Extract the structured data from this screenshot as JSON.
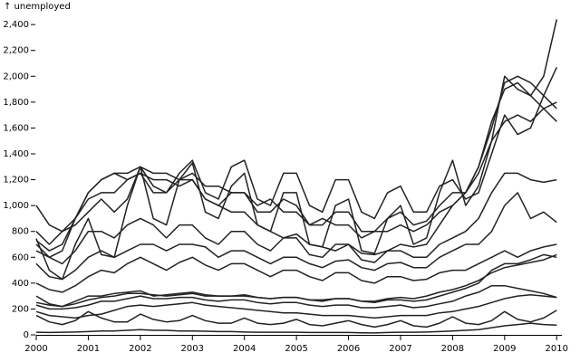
{
  "chart_data": {
    "type": "line",
    "y_label": "↑ unemployed",
    "color": "#222",
    "xlim": [
      2000,
      2010.1
    ],
    "xticks": [
      2000,
      2001,
      2002,
      2003,
      2004,
      2005,
      2006,
      2007,
      2008,
      2009,
      2010
    ],
    "ylim": [
      0,
      2450
    ],
    "yticks": [
      0,
      200,
      400,
      600,
      800,
      {
        "value": 1000,
        "label": "1,000"
      },
      {
        "value": 1200,
        "label": "1,200"
      },
      {
        "value": 1400,
        "label": "1,400"
      },
      {
        "value": 1600,
        "label": "1,600"
      },
      {
        "value": 1800,
        "label": "1,800"
      },
      {
        "value": 2000,
        "label": "2,000"
      },
      {
        "value": 2200,
        "label": "2,200"
      },
      {
        "value": 2400,
        "label": "2,400"
      }
    ],
    "x": [
      2000,
      2000.25,
      2000.5,
      2000.75,
      2001,
      2001.25,
      2001.5,
      2001.75,
      2002,
      2002.25,
      2002.5,
      2002.75,
      2003,
      2003.25,
      2003.5,
      2003.75,
      2004,
      2004.25,
      2004.5,
      2004.75,
      2005,
      2005.25,
      2005.5,
      2005.75,
      2006,
      2006.25,
      2006.5,
      2006.75,
      2007,
      2007.25,
      2007.5,
      2007.75,
      2008,
      2008.25,
      2008.5,
      2008.75,
      2009,
      2009.25,
      2009.5,
      2009.75,
      2010
    ],
    "series": [
      {
        "values": [
          745,
          500,
          430,
          700,
          900,
          620,
          600,
          1000,
          1300,
          900,
          850,
          1200,
          1330,
          950,
          900,
          1150,
          1250,
          850,
          800,
          1100,
          1100,
          700,
          680,
          1000,
          1050,
          650,
          630,
          900,
          1000,
          700,
          750,
          1100,
          1350,
          1000,
          1150,
          1500,
          2000,
          1900,
          1850,
          2000,
          2440
        ]
      },
      {
        "values": [
          730,
          650,
          700,
          900,
          1100,
          1200,
          1250,
          1200,
          1250,
          1200,
          1200,
          1150,
          1200,
          1050,
          1000,
          950,
          950,
          850,
          800,
          750,
          780,
          700,
          680,
          650,
          700,
          630,
          620,
          650,
          700,
          680,
          700,
          850,
          1000,
          1100,
          1300,
          1600,
          1950,
          2000,
          1950,
          1850,
          1750
        ]
      },
      {
        "values": [
          1000,
          850,
          800,
          900,
          1050,
          1100,
          1100,
          1200,
          1250,
          1100,
          1100,
          1200,
          1200,
          1050,
          1000,
          1100,
          1100,
          950,
          950,
          1050,
          1000,
          850,
          850,
          950,
          950,
          800,
          800,
          900,
          950,
          850,
          880,
          1000,
          1100,
          1100,
          1250,
          1500,
          1650,
          1700,
          1650,
          1750,
          1800
        ]
      },
      {
        "values": [
          650,
          600,
          650,
          900,
          1100,
          1200,
          1250,
          1250,
          1300,
          1250,
          1250,
          1200,
          1250,
          1150,
          1150,
          1100,
          1100,
          1000,
          1050,
          950,
          950,
          850,
          900,
          850,
          850,
          750,
          800,
          800,
          850,
          800,
          850,
          950,
          1000,
          1100,
          1300,
          1650,
          1900,
          1950,
          1850,
          1750,
          1650
        ]
      },
      {
        "values": [
          800,
          700,
          800,
          850,
          950,
          1050,
          950,
          1050,
          1300,
          1150,
          1100,
          1250,
          1350,
          1100,
          1050,
          1300,
          1350,
          1050,
          1000,
          1250,
          1250,
          1000,
          950,
          1200,
          1200,
          950,
          900,
          1100,
          1150,
          950,
          950,
          1150,
          1200,
          1050,
          1100,
          1400,
          1700,
          1550,
          1600,
          1850,
          2070
        ]
      },
      {
        "values": [
          700,
          600,
          550,
          650,
          800,
          800,
          750,
          850,
          900,
          850,
          750,
          850,
          850,
          750,
          700,
          800,
          800,
          700,
          650,
          750,
          750,
          620,
          600,
          700,
          700,
          580,
          560,
          650,
          650,
          600,
          600,
          700,
          750,
          800,
          900,
          1100,
          1250,
          1250,
          1200,
          1180,
          1200
        ]
      },
      {
        "values": [
          550,
          450,
          430,
          500,
          600,
          650,
          600,
          650,
          700,
          700,
          650,
          700,
          700,
          680,
          600,
          650,
          650,
          600,
          550,
          600,
          600,
          550,
          520,
          570,
          580,
          520,
          500,
          550,
          560,
          520,
          520,
          600,
          650,
          700,
          700,
          800,
          1000,
          1100,
          900,
          950,
          870
        ]
      },
      {
        "values": [
          400,
          350,
          330,
          380,
          450,
          500,
          480,
          550,
          600,
          550,
          500,
          560,
          600,
          540,
          500,
          550,
          550,
          500,
          450,
          500,
          500,
          450,
          420,
          480,
          480,
          420,
          400,
          450,
          450,
          420,
          430,
          480,
          500,
          500,
          550,
          600,
          650,
          600,
          650,
          680,
          700
        ]
      },
      {
        "values": [
          250,
          230,
          220,
          240,
          270,
          290,
          300,
          320,
          320,
          310,
          300,
          310,
          320,
          300,
          300,
          300,
          300,
          290,
          280,
          290,
          290,
          270,
          260,
          280,
          280,
          260,
          250,
          270,
          270,
          260,
          270,
          300,
          330,
          360,
          400,
          500,
          550,
          550,
          580,
          620,
          600
        ]
      },
      {
        "values": [
          300,
          240,
          220,
          260,
          300,
          300,
          320,
          330,
          340,
          300,
          310,
          320,
          330,
          310,
          300,
          300,
          310,
          290,
          280,
          290,
          290,
          270,
          270,
          280,
          280,
          260,
          260,
          280,
          290,
          280,
          300,
          330,
          350,
          380,
          420,
          480,
          520,
          540,
          560,
          580,
          620
        ]
      },
      {
        "values": [
          230,
          200,
          200,
          210,
          230,
          260,
          260,
          280,
          300,
          280,
          280,
          290,
          290,
          270,
          260,
          270,
          270,
          250,
          240,
          250,
          250,
          230,
          220,
          230,
          230,
          210,
          210,
          220,
          230,
          210,
          220,
          240,
          260,
          300,
          330,
          380,
          380,
          360,
          340,
          320,
          290
        ]
      },
      {
        "values": [
          180,
          150,
          140,
          130,
          150,
          160,
          190,
          220,
          230,
          220,
          230,
          240,
          250,
          230,
          220,
          210,
          200,
          190,
          180,
          170,
          170,
          160,
          150,
          150,
          150,
          140,
          130,
          140,
          150,
          150,
          150,
          170,
          180,
          200,
          220,
          250,
          280,
          300,
          310,
          300,
          290
        ]
      },
      {
        "values": [
          150,
          100,
          80,
          110,
          180,
          130,
          100,
          100,
          160,
          120,
          100,
          110,
          150,
          110,
          90,
          90,
          130,
          90,
          80,
          90,
          120,
          80,
          70,
          90,
          110,
          80,
          60,
          80,
          110,
          70,
          60,
          90,
          140,
          90,
          80,
          110,
          180,
          120,
          100,
          130,
          190
        ]
      },
      {
        "values": [
          20,
          18,
          20,
          22,
          25,
          30,
          30,
          35,
          40,
          35,
          35,
          30,
          30,
          28,
          25,
          25,
          22,
          20,
          20,
          20,
          20,
          18,
          18,
          18,
          18,
          16,
          15,
          18,
          20,
          20,
          22,
          25,
          30,
          35,
          40,
          55,
          70,
          80,
          90,
          80,
          75
        ]
      }
    ]
  }
}
